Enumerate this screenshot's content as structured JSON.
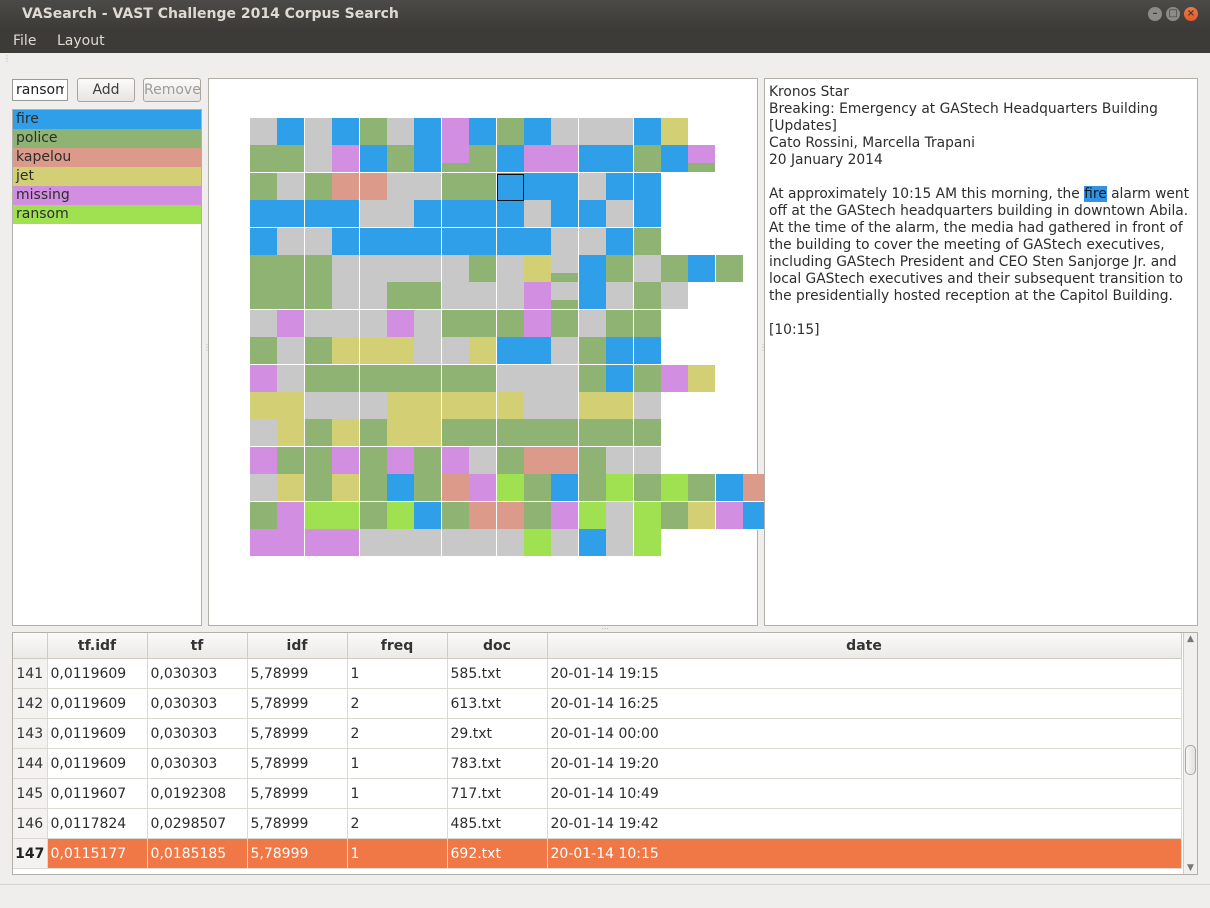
{
  "window": {
    "title": "VASearch - VAST Challenge 2014 Corpus Search"
  },
  "menu": {
    "file": "File",
    "layout": "Layout"
  },
  "search": {
    "value": "ransom",
    "add_label": "Add",
    "remove_label": "Remove"
  },
  "terms": [
    {
      "label": "fire",
      "color": "#2f9fea"
    },
    {
      "label": "police",
      "color": "#8fb373"
    },
    {
      "label": "kapelou",
      "color": "#dc9a8a"
    },
    {
      "label": "jet",
      "color": "#d3cf75"
    },
    {
      "label": "missing",
      "color": "#d28fe2"
    },
    {
      "label": "ransom",
      "color": "#a0e152"
    }
  ],
  "colors": {
    "none": "#c8c8c8",
    "selection": "#f07746"
  },
  "treemap_rows": [
    "NFNFPNFMFPFNNNF|Jj",
    "PPNMF|PpF|MpPFMMFFPF|Mp",
    "PNPKKNNPPFFFNFF",
    "FFFFNNFFFFNFFNF",
    "FNNFFFFFFFFNNFP",
    "PPPNNNNNPNJ|NpF|PNPF|P",
    "PPPNNPPNNNM|NpFNPN",
    "NMNNNMNPPPMPNPP",
    "PNPJJJNNJFFNPFF",
    "MNPPPPPPPNNNPF|PM|J",
    "JJNNNJJJJJNNJJN",
    "NJPJPJJPPPPPPPP",
    "MPPMPMPMNPKKPNN",
    "NJ|PJ|PFPK|MRPF|PR|PR|PFKKRR|P",
    "P|M|RR|PR|F|PKKP|M|RNR|PJ|M|FPPMMP|M",
    "MMMMNNNNNNRNF|N|R|"
  ],
  "doc": {
    "source": "Kronos Star",
    "headline": "Breaking: Emergency at GAStech Headquarters Building [Updates]",
    "authors": "Cato Rossini, Marcella Trapani",
    "date": "20 January 2014",
    "body_pre": "At approximately 10:15 AM this morning, the ",
    "body_highlight": "fire",
    "body_post": " alarm went off at the GAStech headquarters building in downtown Abila. At the time of the alarm, the media had gathered in front of the building to cover the meeting of GAStech executives, including GAStech President and CEO Sten Sanjorge Jr. and local GAStech executives and their subsequent transition to the presidentially hosted reception at the Capitol Building.",
    "time": "[10:15]"
  },
  "table": {
    "columns": [
      "tf.idf",
      "tf",
      "idf",
      "freq",
      "doc",
      "date"
    ],
    "rows": [
      {
        "num": "141",
        "tfidf": "0,0119609",
        "tf": "0,030303",
        "idf": "5,78999",
        "freq": "1",
        "doc": "585.txt",
        "date": "20-01-14 19:15"
      },
      {
        "num": "142",
        "tfidf": "0,0119609",
        "tf": "0,030303",
        "idf": "5,78999",
        "freq": "2",
        "doc": "613.txt",
        "date": "20-01-14 16:25"
      },
      {
        "num": "143",
        "tfidf": "0,0119609",
        "tf": "0,030303",
        "idf": "5,78999",
        "freq": "2",
        "doc": "29.txt",
        "date": "20-01-14 00:00"
      },
      {
        "num": "144",
        "tfidf": "0,0119609",
        "tf": "0,030303",
        "idf": "5,78999",
        "freq": "1",
        "doc": "783.txt",
        "date": "20-01-14 19:20"
      },
      {
        "num": "145",
        "tfidf": "0,0119607",
        "tf": "0,0192308",
        "idf": "5,78999",
        "freq": "1",
        "doc": "717.txt",
        "date": "20-01-14 10:49"
      },
      {
        "num": "146",
        "tfidf": "0,0117824",
        "tf": "0,0298507",
        "idf": "5,78999",
        "freq": "2",
        "doc": "485.txt",
        "date": "20-01-14 19:42"
      },
      {
        "num": "147",
        "tfidf": "0,0115177",
        "tf": "0,0185185",
        "idf": "5,78999",
        "freq": "1",
        "doc": "692.txt",
        "date": "20-01-14 10:15",
        "selected": true
      }
    ]
  }
}
